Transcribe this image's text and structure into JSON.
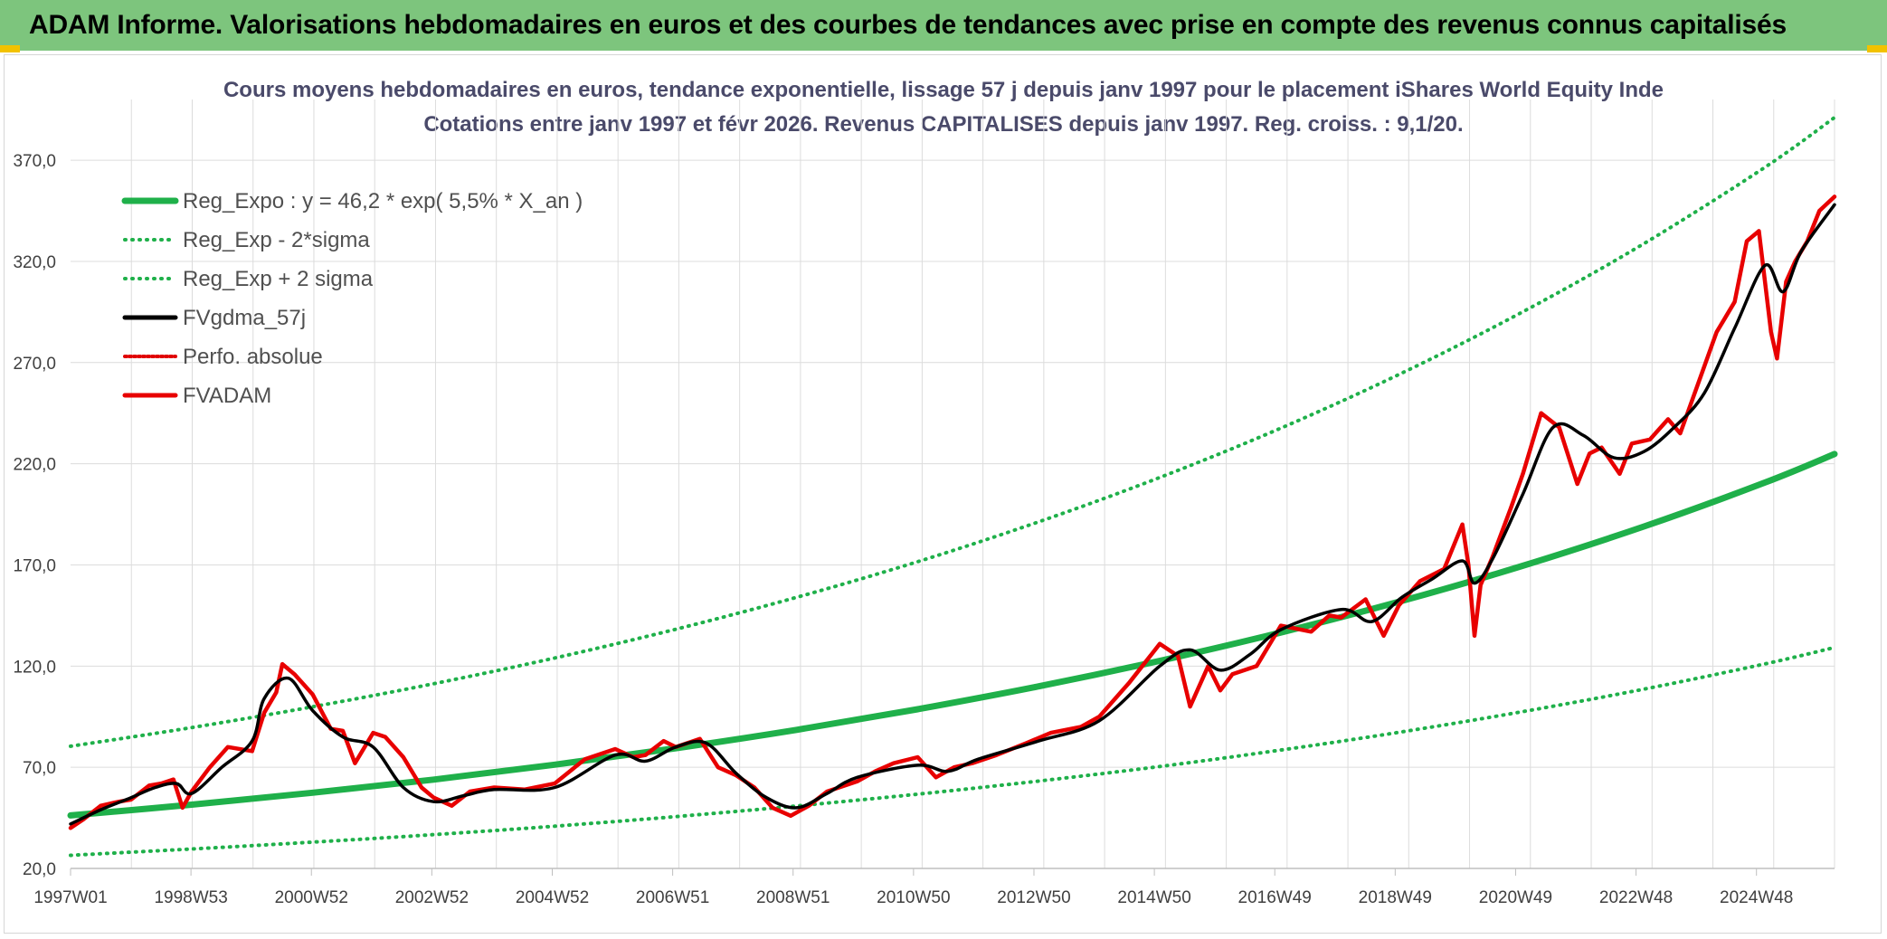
{
  "header": {
    "title": "ADAM Informe. Valorisations hebdomadaires en euros et des courbes de tendances avec prise en compte des revenus connus capitalisés"
  },
  "colors": {
    "header_bg": "#7dc57d",
    "reg_expo": "#1fb04a",
    "sigma": "#1fb04a",
    "fvgdma": "#000000",
    "perfo": "#e00000",
    "fvadam": "#e80000",
    "grid": "#dcdcdc"
  },
  "chart_data": {
    "type": "line",
    "title": "Cours moyens hebdomadaires en euros, tendance exponentielle, lissage 57 j depuis janv 1997 pour le placement iShares World Equity Inde",
    "subtitle": "Cotations entre janv 1997 et févr 2026. Revenus CAPITALISES depuis janv 1997. Reg. croiss. : 9,1/20.",
    "xlabel": "",
    "ylabel": "",
    "x_range": [
      1997.0,
      2026.15
    ],
    "ylim": [
      20,
      400
    ],
    "y_ticks": [
      20,
      70,
      120,
      170,
      220,
      270,
      320,
      370
    ],
    "y_tick_labels": [
      "20,0",
      "70,0",
      "120,0",
      "170,0",
      "220,0",
      "270,0",
      "320,0",
      "370,0"
    ],
    "x_tick_labels": [
      "1997W01",
      "1998W53",
      "2000W52",
      "2002W52",
      "2004W52",
      "2006W51",
      "2008W51",
      "2010W50",
      "2012W50",
      "2014W50",
      "2016W49",
      "2018W49",
      "2020W49",
      "2022W48",
      "2024W48"
    ],
    "grid": true,
    "legend_position": "top-left",
    "series": [
      {
        "name": "Reg_Expo : y = 46,2 * exp( 5,5% *  X_an )",
        "style": "solid-thick",
        "x": [
          1997.0,
          1999.0,
          2001.0,
          2003.0,
          2005.0,
          2007.0,
          2009.0,
          2011.0,
          2013.0,
          2015.0,
          2017.0,
          2019.0,
          2021.0,
          2023.0,
          2025.0,
          2026.15
        ],
        "values": [
          46.2,
          51.5,
          57.4,
          63.9,
          71.3,
          79.4,
          88.5,
          98.7,
          110.0,
          122.6,
          136.6,
          152.2,
          169.6,
          189.0,
          210.7,
          224.8
        ]
      },
      {
        "name": "Reg_Exp - 2*sigma",
        "style": "dotted",
        "x": [
          1997.0,
          1999.0,
          2001.0,
          2003.0,
          2005.0,
          2007.0,
          2009.0,
          2011.0,
          2013.0,
          2015.0,
          2017.0,
          2019.0,
          2021.0,
          2023.0,
          2025.0,
          2026.15
        ],
        "values": [
          26.5,
          29.6,
          33.0,
          36.7,
          40.9,
          45.6,
          50.9,
          56.7,
          63.2,
          70.4,
          78.5,
          87.5,
          97.5,
          108.6,
          121.1,
          129.2
        ]
      },
      {
        "name": "Reg_Exp + 2 sigma",
        "style": "dotted",
        "x": [
          1997.0,
          1999.0,
          2001.0,
          2003.0,
          2005.0,
          2007.0,
          2009.0,
          2011.0,
          2013.0,
          2015.0,
          2017.0,
          2019.0,
          2021.0,
          2023.0,
          2025.0,
          2026.15
        ],
        "values": [
          80.4,
          89.6,
          99.9,
          111.3,
          124.0,
          138.2,
          154.0,
          171.6,
          191.3,
          213.2,
          237.6,
          264.8,
          295.1,
          328.8,
          366.5,
          391.1
        ]
      },
      {
        "name": "FVgdma_57j",
        "style": "solid",
        "x": [
          1997.0,
          1997.5,
          1998.0,
          1998.4,
          1998.75,
          1999.0,
          1999.5,
          2000.0,
          2000.2,
          2000.6,
          2001.0,
          2001.5,
          2002.0,
          2002.5,
          2003.0,
          2003.5,
          2004.0,
          2005.0,
          2006.0,
          2006.5,
          2007.0,
          2007.5,
          2008.0,
          2008.5,
          2009.0,
          2009.5,
          2010.0,
          2011.0,
          2011.5,
          2012.0,
          2013.0,
          2014.0,
          2015.0,
          2015.5,
          2016.0,
          2016.5,
          2017.0,
          2018.0,
          2018.5,
          2019.0,
          2019.5,
          2020.0,
          2020.2,
          2020.5,
          2021.0,
          2021.5,
          2022.0,
          2022.5,
          2023.0,
          2023.5,
          2024.0,
          2024.5,
          2025.0,
          2025.3,
          2025.6,
          2026.15
        ],
        "values": [
          42,
          49,
          55,
          60,
          62,
          57,
          70,
          83,
          104,
          114,
          98,
          85,
          80,
          60,
          53,
          56,
          59,
          60,
          76,
          73,
          80,
          82,
          67,
          55,
          50,
          57,
          65,
          71,
          68,
          74,
          83,
          93,
          120,
          128,
          118,
          126,
          138,
          148,
          142,
          154,
          163,
          172,
          161,
          173,
          205,
          238,
          234,
          223,
          226,
          238,
          255,
          287,
          318,
          305,
          325,
          348
        ]
      },
      {
        "name": "Perfo. absolue",
        "style": "dotted",
        "x": [],
        "values": []
      },
      {
        "name": "FVADAM",
        "style": "solid-thick",
        "x": [
          1997.0,
          1997.2,
          1997.5,
          1997.8,
          1998.0,
          1998.3,
          1998.5,
          1998.7,
          1998.85,
          1999.0,
          1999.3,
          1999.6,
          2000.0,
          2000.2,
          2000.4,
          2000.5,
          2000.7,
          2001.0,
          2001.3,
          2001.5,
          2001.7,
          2002.0,
          2002.2,
          2002.5,
          2002.8,
          2003.0,
          2003.3,
          2003.6,
          2004.0,
          2004.5,
          2005.0,
          2005.5,
          2006.0,
          2006.3,
          2006.5,
          2006.8,
          2007.0,
          2007.4,
          2007.7,
          2008.0,
          2008.3,
          2008.6,
          2008.9,
          2009.2,
          2009.5,
          2010.0,
          2010.3,
          2010.6,
          2011.0,
          2011.3,
          2011.6,
          2011.9,
          2012.3,
          2012.8,
          2013.2,
          2013.7,
          2014.0,
          2014.5,
          2015.0,
          2015.3,
          2015.5,
          2015.8,
          2016.0,
          2016.2,
          2016.6,
          2017.0,
          2017.5,
          2017.8,
          2018.0,
          2018.4,
          2018.7,
          2018.95,
          2019.3,
          2019.7,
          2020.0,
          2020.1,
          2020.2,
          2020.3,
          2020.5,
          2020.8,
          2021.0,
          2021.3,
          2021.6,
          2021.9,
          2022.1,
          2022.3,
          2022.6,
          2022.8,
          2023.1,
          2023.4,
          2023.6,
          2023.9,
          2024.2,
          2024.5,
          2024.7,
          2024.9,
          2025.1,
          2025.2,
          2025.35,
          2025.5,
          2025.7,
          2025.9,
          2026.15
        ],
        "values": [
          40,
          44,
          51,
          53,
          54,
          61,
          62,
          64,
          50,
          58,
          70,
          80,
          78,
          97,
          107,
          121,
          116,
          106,
          89,
          88,
          72,
          87,
          85,
          75,
          60,
          55,
          51,
          58,
          60,
          59,
          62,
          74,
          79,
          75,
          76,
          83,
          80,
          84,
          70,
          66,
          60,
          50,
          46,
          51,
          58,
          63,
          68,
          72,
          75,
          65,
          70,
          72,
          76,
          82,
          87,
          90,
          95,
          112,
          131,
          125,
          100,
          120,
          108,
          116,
          120,
          140,
          137,
          145,
          144,
          153,
          135,
          150,
          162,
          168,
          190,
          170,
          135,
          160,
          174,
          198,
          215,
          245,
          238,
          210,
          225,
          228,
          215,
          230,
          232,
          242,
          235,
          260,
          285,
          300,
          330,
          335,
          285,
          272,
          310,
          320,
          330,
          345,
          352
        ]
      }
    ]
  }
}
